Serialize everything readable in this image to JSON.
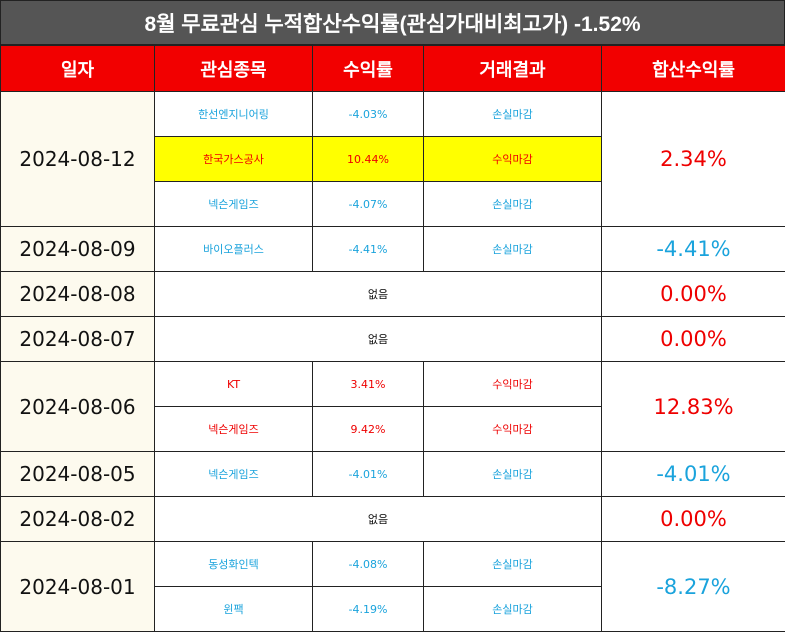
{
  "title": "8월 무료관심 누적합산수익률(관심가대비최고가) -1.52%",
  "headers": [
    "일자",
    "관심종목",
    "수익률",
    "거래결과",
    "합산수익률"
  ],
  "colors": {
    "header_bg": "#f20000",
    "title_bg": "#555555",
    "loss": "#1aa3dc",
    "gain": "#ee0000",
    "highlight": "#ffff00",
    "date_bg": "#fdfaee"
  },
  "groups": [
    {
      "date": "2024-08-12",
      "total": "2.34%",
      "total_sign": "gain",
      "rows": [
        {
          "stock": "한선엔지니어링",
          "rate": "-4.03%",
          "result": "손실마감",
          "sign": "loss"
        },
        {
          "stock": "한국가스공사",
          "rate": "10.44%",
          "result": "수익마감",
          "sign": "gain",
          "highlight": true
        },
        {
          "stock": "넥슨게임즈",
          "rate": "-4.07%",
          "result": "손실마감",
          "sign": "loss"
        }
      ]
    },
    {
      "date": "2024-08-09",
      "total": "-4.41%",
      "total_sign": "loss",
      "rows": [
        {
          "stock": "바이오플러스",
          "rate": "-4.41%",
          "result": "손실마감",
          "sign": "loss"
        }
      ]
    },
    {
      "date": "2024-08-08",
      "total": "0.00%",
      "total_sign": "gain",
      "none": "없음"
    },
    {
      "date": "2024-08-07",
      "total": "0.00%",
      "total_sign": "gain",
      "none": "없음"
    },
    {
      "date": "2024-08-06",
      "total": "12.83%",
      "total_sign": "gain",
      "rows": [
        {
          "stock": "KT",
          "rate": "3.41%",
          "result": "수익마감",
          "sign": "gain"
        },
        {
          "stock": "넥슨게임즈",
          "rate": "9.42%",
          "result": "수익마감",
          "sign": "gain"
        }
      ]
    },
    {
      "date": "2024-08-05",
      "total": "-4.01%",
      "total_sign": "loss",
      "rows": [
        {
          "stock": "넥슨게임즈",
          "rate": "-4.01%",
          "result": "손실마감",
          "sign": "loss"
        }
      ]
    },
    {
      "date": "2024-08-02",
      "total": "0.00%",
      "total_sign": "gain",
      "none": "없음"
    },
    {
      "date": "2024-08-01",
      "total": "-8.27%",
      "total_sign": "loss",
      "rows": [
        {
          "stock": "동성화인텍",
          "rate": "-4.08%",
          "result": "손실마감",
          "sign": "loss"
        },
        {
          "stock": "윈팩",
          "rate": "-4.19%",
          "result": "손실마감",
          "sign": "loss"
        }
      ]
    }
  ]
}
